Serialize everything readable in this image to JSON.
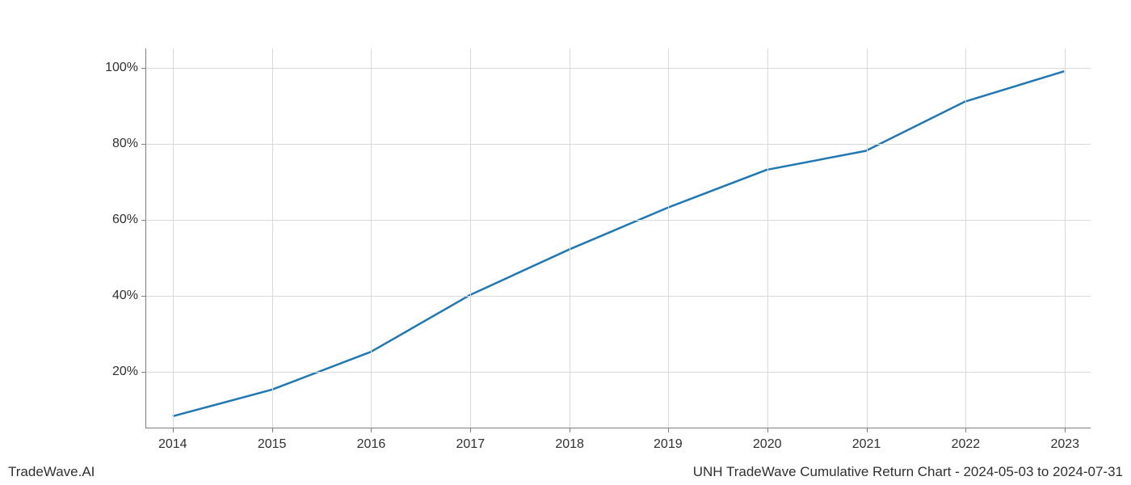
{
  "chart": {
    "type": "line",
    "background_color": "#ffffff",
    "grid_color": "#d9d9d9",
    "axis_color": "#808080",
    "tick_font_size": 16,
    "tick_color": "#303030",
    "line_color": "#1f77b4",
    "line_width": 2.5,
    "x_categories": [
      "2014",
      "2015",
      "2016",
      "2017",
      "2018",
      "2019",
      "2020",
      "2021",
      "2022",
      "2023"
    ],
    "x_positions": [
      0.028,
      0.133,
      0.238,
      0.343,
      0.448,
      0.552,
      0.657,
      0.762,
      0.867,
      0.972
    ],
    "y_ticks": [
      20,
      40,
      60,
      80,
      100
    ],
    "y_tick_labels": [
      "20%",
      "40%",
      "60%",
      "80%",
      "100%"
    ],
    "y_min": 5,
    "y_max": 105,
    "series": {
      "x": [
        0.028,
        0.133,
        0.238,
        0.343,
        0.448,
        0.552,
        0.657,
        0.762,
        0.867,
        0.972
      ],
      "y": [
        8,
        15,
        25,
        40,
        52,
        63,
        73,
        78,
        91,
        99
      ]
    }
  },
  "footer": {
    "left": "TradeWave.AI",
    "right": "UNH TradeWave Cumulative Return Chart - 2024-05-03 to 2024-07-31"
  }
}
